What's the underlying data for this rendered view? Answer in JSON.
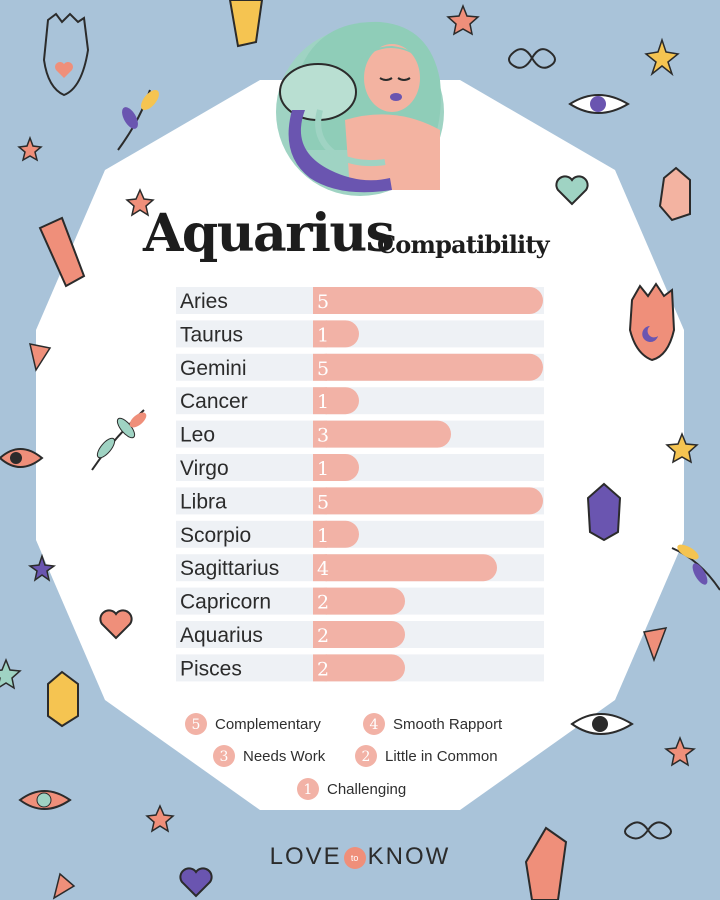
{
  "chart_data": {
    "type": "bar",
    "orientation": "horizontal",
    "title": "Aquarius",
    "subtitle": "Compatibility",
    "categories": [
      "Aries",
      "Taurus",
      "Gemini",
      "Cancer",
      "Leo",
      "Virgo",
      "Libra",
      "Scorpio",
      "Sagittarius",
      "Capricorn",
      "Aquarius",
      "Pisces"
    ],
    "values": [
      5,
      1,
      5,
      1,
      3,
      1,
      5,
      1,
      4,
      2,
      2,
      2
    ],
    "xlim": [
      0,
      5
    ],
    "grid": false,
    "bar_color": "#f2b2a6",
    "track_color": "#eef1f5",
    "legend": [
      {
        "value": "5",
        "label": "Complementary"
      },
      {
        "value": "4",
        "label": "Smooth Rapport"
      },
      {
        "value": "3",
        "label": "Needs Work"
      },
      {
        "value": "2",
        "label": "Little in Common"
      },
      {
        "value": "1",
        "label": "Challenging"
      }
    ],
    "legend_position": "bottom"
  },
  "brand": {
    "left": "LOVE",
    "middle": "to",
    "right": "KNOW"
  },
  "colors": {
    "background": "#a9c3d9",
    "panel": "#ffffff",
    "accent": "#ef8f7a",
    "purple": "#6a55b0"
  }
}
